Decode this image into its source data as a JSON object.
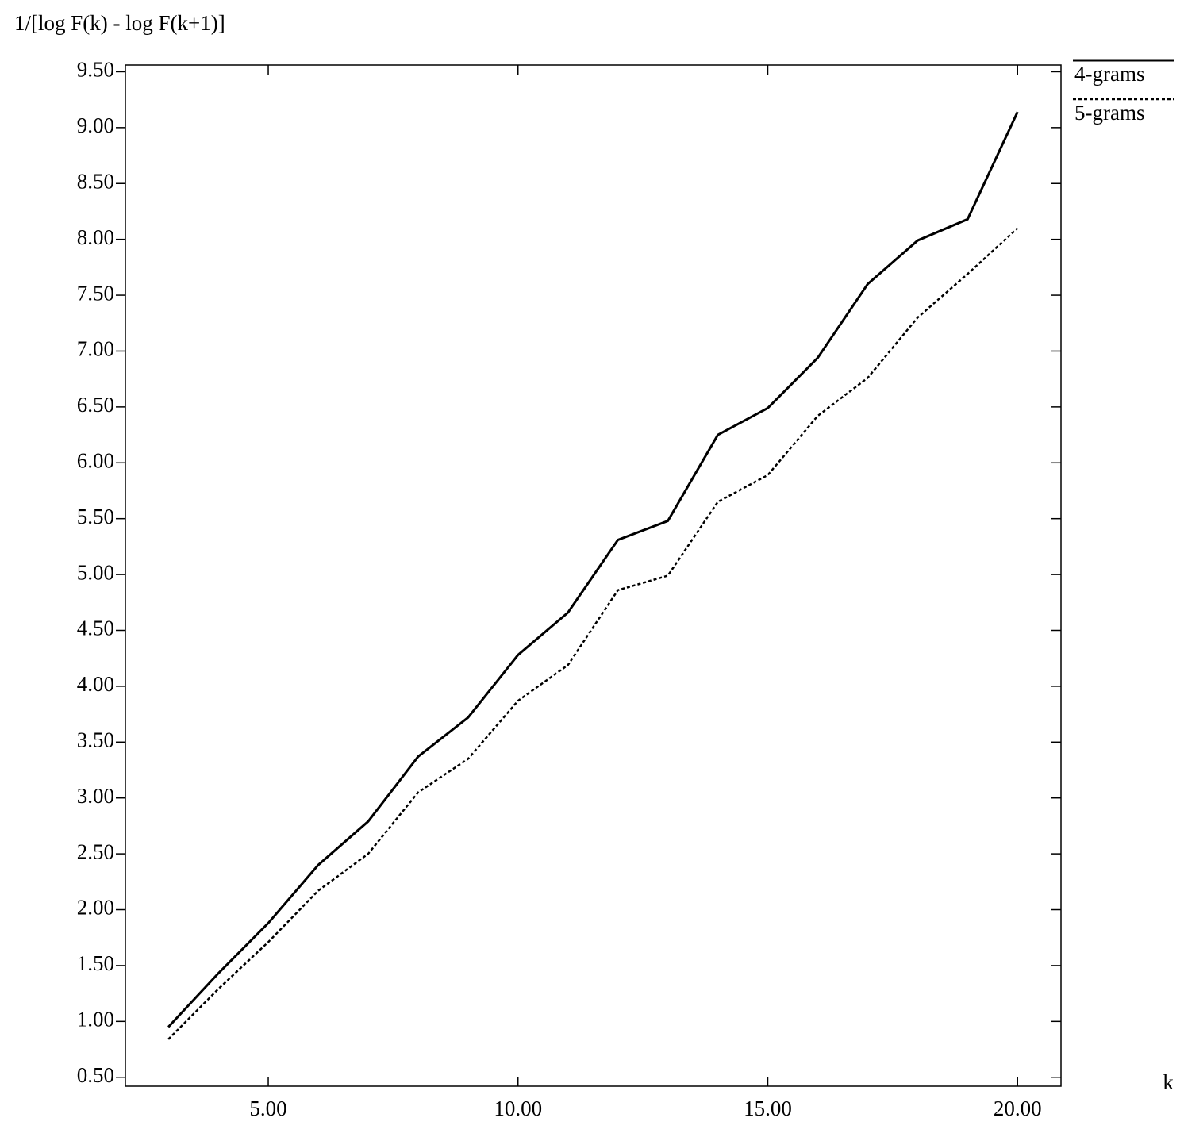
{
  "chart_data": {
    "type": "line",
    "y_label": "1/[log F(k) - log F(k+1)]",
    "x_label": "k",
    "x": [
      3,
      4,
      5,
      6,
      7,
      8,
      9,
      10,
      11,
      12,
      13,
      14,
      15,
      16,
      17,
      18,
      19,
      20
    ],
    "series": [
      {
        "name": "4-grams",
        "color": "#000000",
        "line_style": "solid",
        "values": [
          0.95,
          1.43,
          1.88,
          2.4,
          2.79,
          3.37,
          3.72,
          4.28,
          4.66,
          5.31,
          5.48,
          6.25,
          6.49,
          6.94,
          7.6,
          7.99,
          8.18,
          9.14
        ]
      },
      {
        "name": "5-grams",
        "color": "#000000",
        "line_style": "dotted",
        "values": [
          0.84,
          1.29,
          1.71,
          2.17,
          2.5,
          3.05,
          3.35,
          3.87,
          4.19,
          4.86,
          4.99,
          5.65,
          5.89,
          6.42,
          6.76,
          7.3,
          7.69,
          8.1
        ]
      }
    ],
    "xlim": [
      2.14,
      20.87
    ],
    "ylim": [
      0.42,
      9.56
    ],
    "xticks": [
      {
        "value": 5,
        "label": "5.00"
      },
      {
        "value": 10,
        "label": "10.00"
      },
      {
        "value": 15,
        "label": "15.00"
      },
      {
        "value": 20,
        "label": "20.00"
      }
    ],
    "yticks": [
      {
        "value": 0.5,
        "label": "0.50"
      },
      {
        "value": 1,
        "label": "1.00"
      },
      {
        "value": 1.5,
        "label": "1.50"
      },
      {
        "value": 2,
        "label": "2.00"
      },
      {
        "value": 2.5,
        "label": "2.50"
      },
      {
        "value": 3,
        "label": "3.00"
      },
      {
        "value": 3.5,
        "label": "3.50"
      },
      {
        "value": 4,
        "label": "4.00"
      },
      {
        "value": 4.5,
        "label": "4.50"
      },
      {
        "value": 5,
        "label": "5.00"
      },
      {
        "value": 5.5,
        "label": "5.50"
      },
      {
        "value": 6,
        "label": "6.00"
      },
      {
        "value": 6.5,
        "label": "6.50"
      },
      {
        "value": 7,
        "label": "7.00"
      },
      {
        "value": 7.5,
        "label": "7.50"
      },
      {
        "value": 8,
        "label": "8.00"
      },
      {
        "value": 8.5,
        "label": "8.50"
      },
      {
        "value": 9,
        "label": "9.00"
      },
      {
        "value": 9.5,
        "label": "9.50"
      }
    ],
    "grid": false,
    "legend": "right"
  }
}
